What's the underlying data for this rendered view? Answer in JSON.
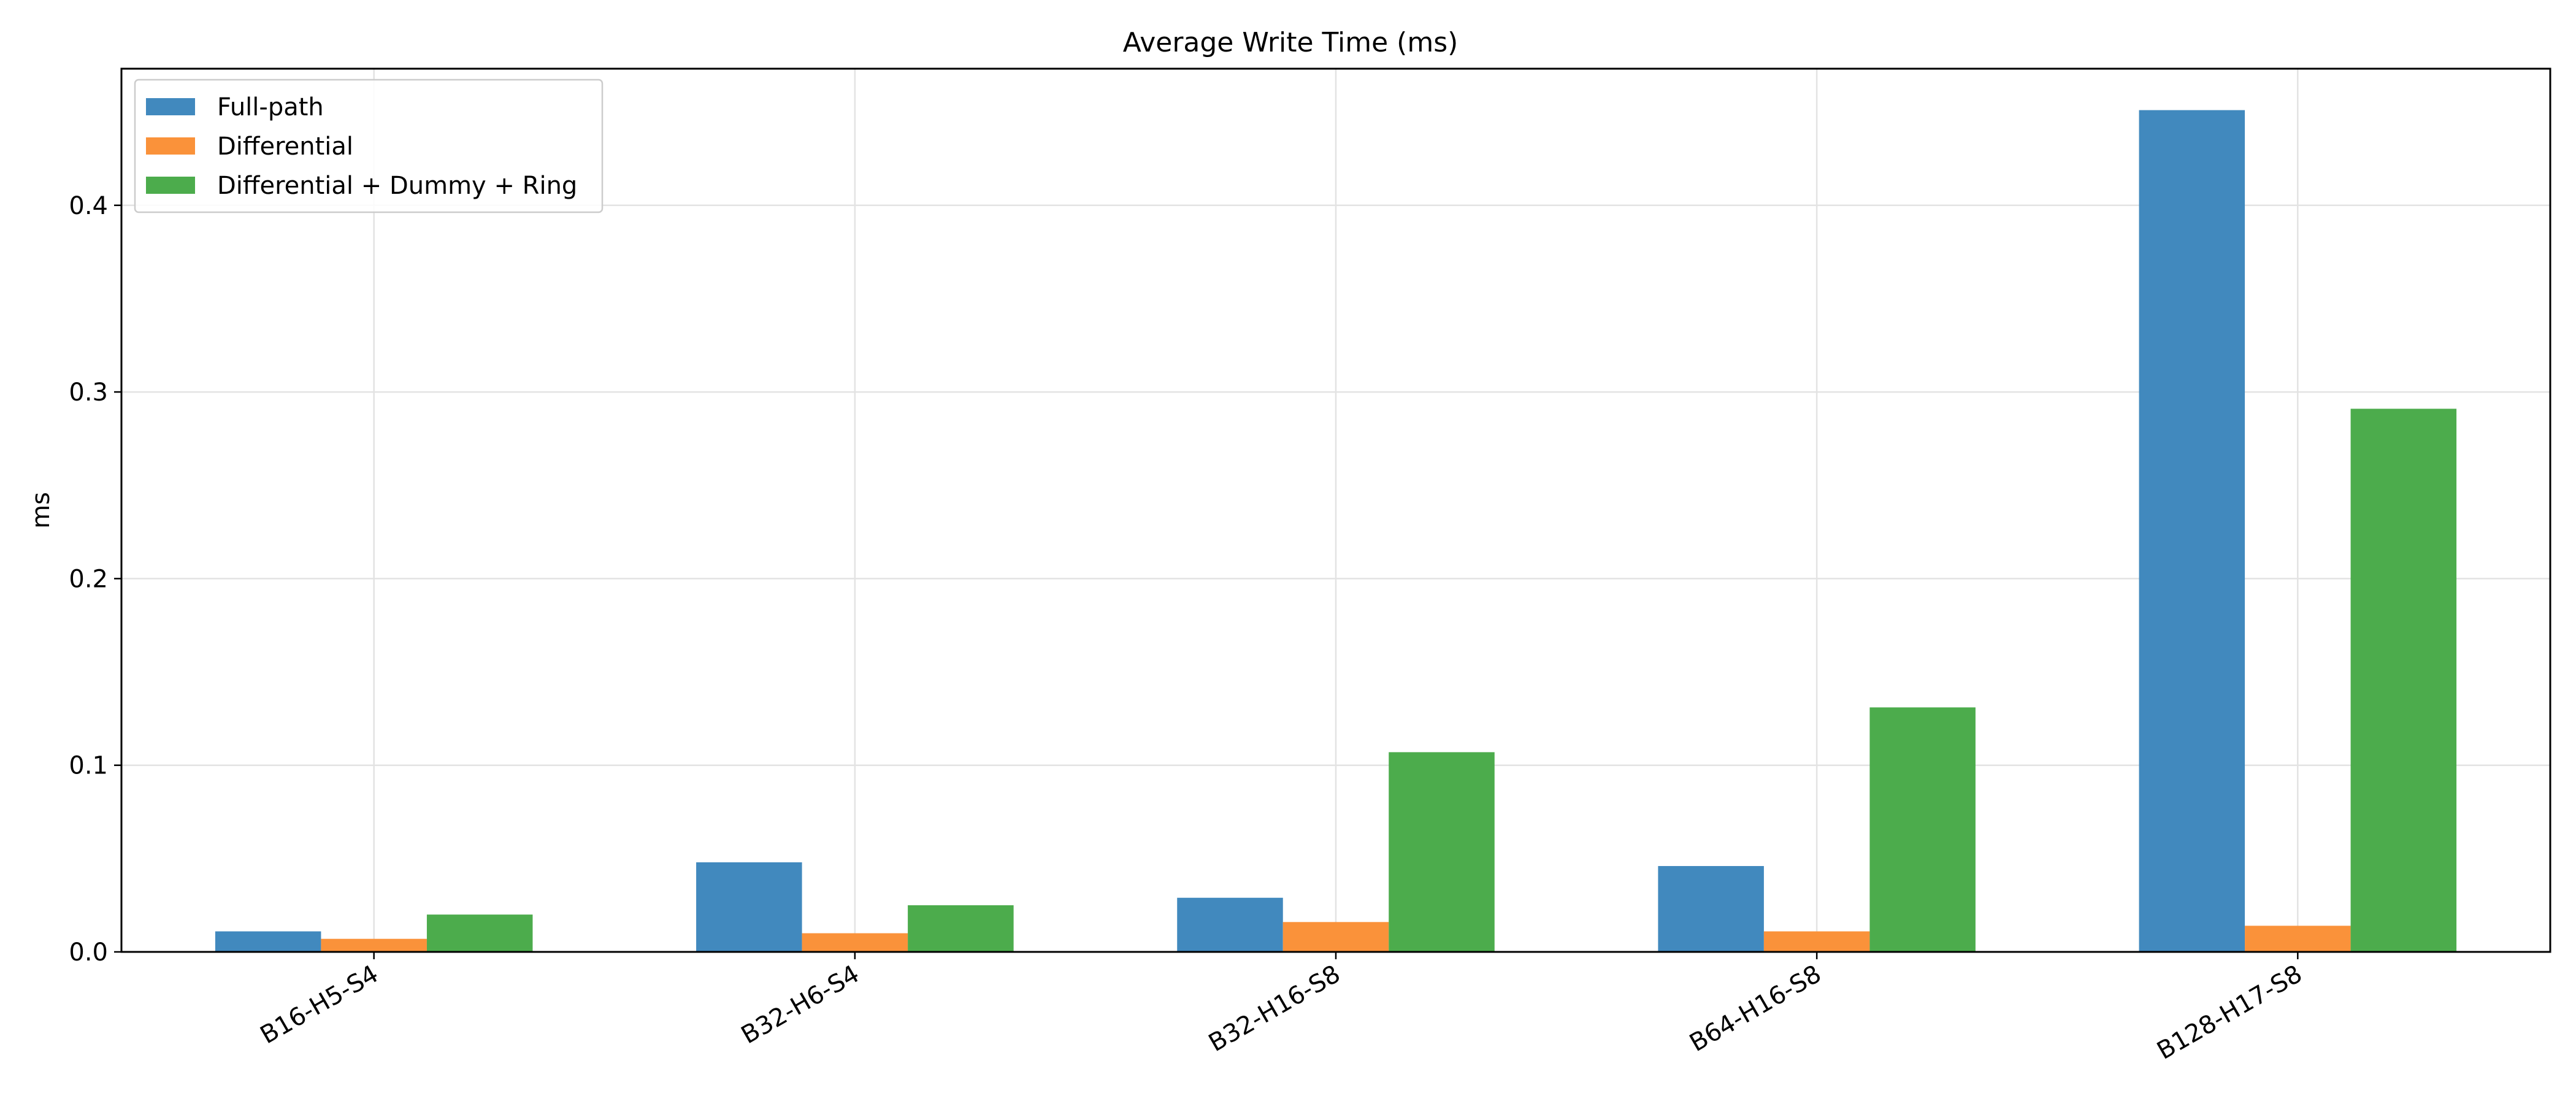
{
  "chart_data": {
    "type": "bar",
    "title": "Average Write Time (ms)",
    "xlabel": "",
    "ylabel": "ms",
    "categories": [
      "B16-H5-S4",
      "B32-H6-S4",
      "B32-H16-S8",
      "B64-H16-S8",
      "B128-H17-S8"
    ],
    "series": [
      {
        "name": "Full-path",
        "color": "#4189be",
        "values": [
          0.011,
          0.048,
          0.029,
          0.046,
          0.451
        ]
      },
      {
        "name": "Differential",
        "color": "#fa923a",
        "values": [
          0.007,
          0.01,
          0.016,
          0.011,
          0.014
        ]
      },
      {
        "name": "Differential + Dummy + Ring",
        "color": "#4cac4c",
        "values": [
          0.02,
          0.025,
          0.107,
          0.131,
          0.291
        ]
      }
    ],
    "ylim": [
      0,
      0.4732
    ],
    "yticks": [
      "0.0",
      "0.1",
      "0.2",
      "0.3",
      "0.4"
    ],
    "grid": true,
    "legend_position": "top-left"
  }
}
